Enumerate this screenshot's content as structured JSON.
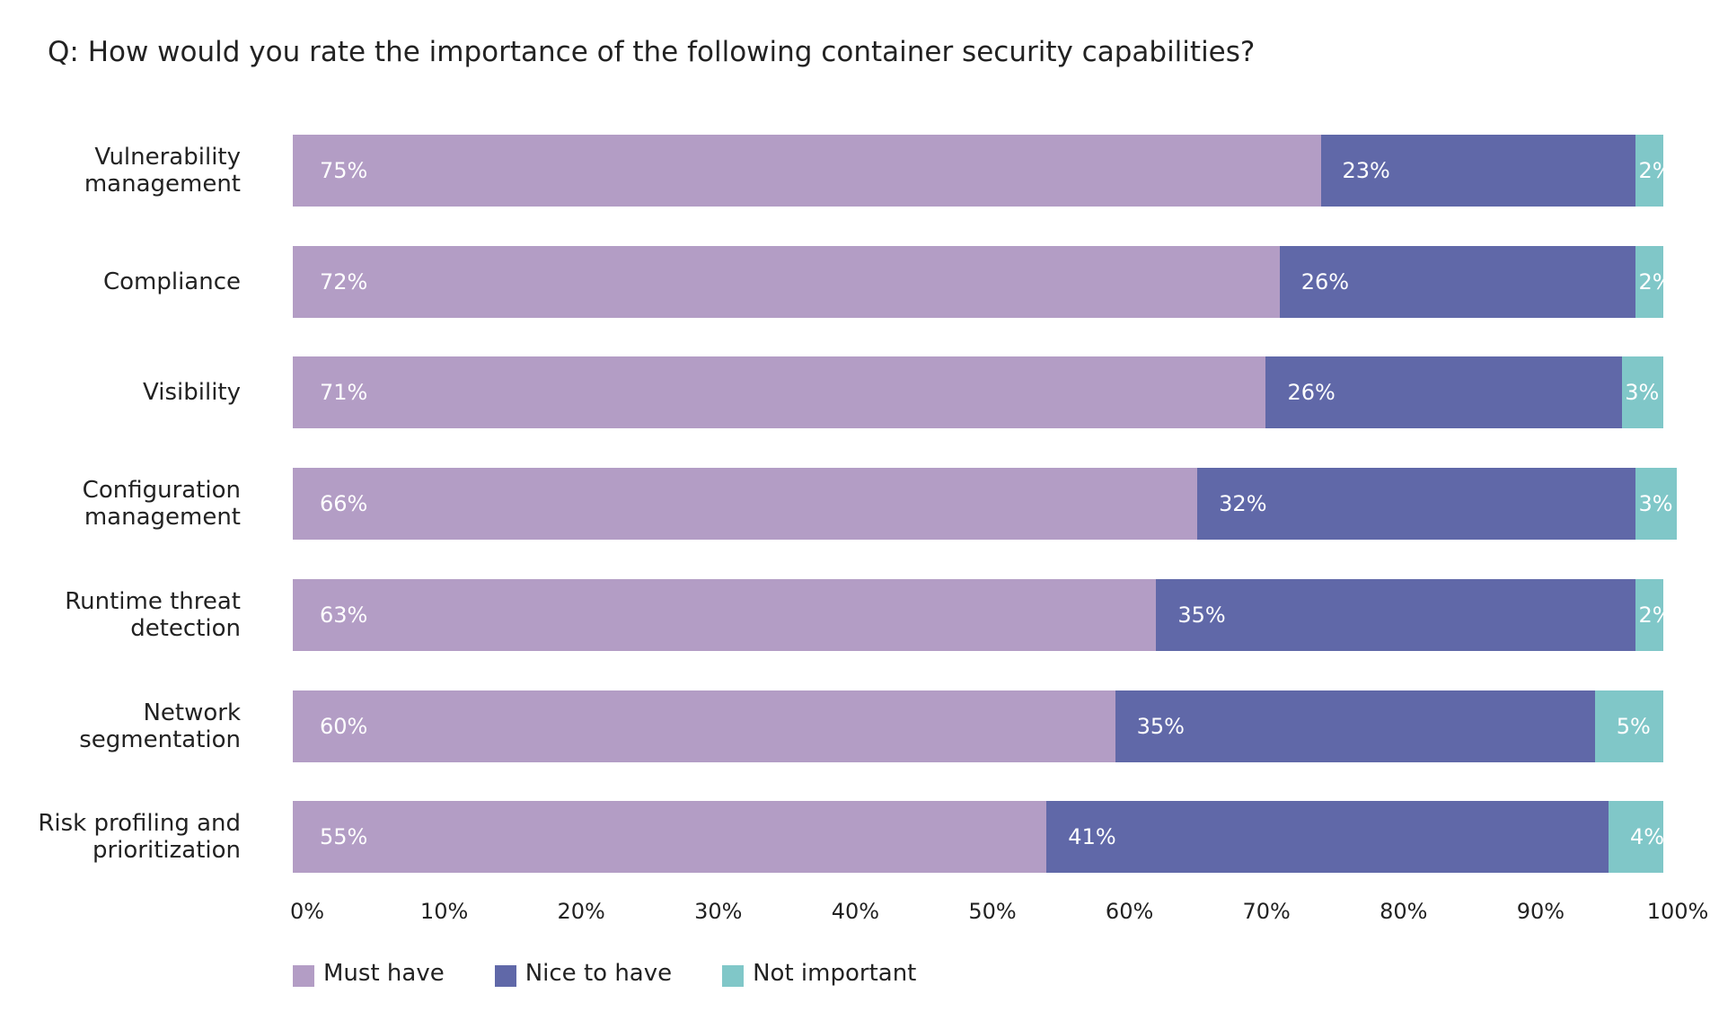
{
  "chart_data": {
    "type": "stacked-bar-horizontal",
    "title": "Q: How would you rate the importance of the following container security capabilities?",
    "categories": [
      "Vulnerability management",
      "Compliance",
      "Visibility",
      "Configuration management",
      "Runtime threat detection",
      "Network segmentation",
      "Risk profiling and prioritization"
    ],
    "series": [
      {
        "name": "Must have",
        "color": "#b39dc5",
        "values": [
          75,
          72,
          71,
          66,
          63,
          60,
          55
        ],
        "value_labels": [
          "75%",
          "72%",
          "71%",
          "66%",
          "63%",
          "60%",
          "55%"
        ]
      },
      {
        "name": "Nice to have",
        "color": "#6068a8",
        "values": [
          23,
          26,
          26,
          32,
          35,
          35,
          41
        ],
        "value_labels": [
          "23%",
          "26%",
          "26%",
          "32%",
          "35%",
          "35%",
          "41%"
        ]
      },
      {
        "name": "Not important",
        "color": "#80c7c8",
        "values": [
          2,
          2,
          3,
          3,
          2,
          5,
          4
        ],
        "value_labels": [
          "2%",
          "2%",
          "3%",
          "3%",
          "2%",
          "5%",
          "4%"
        ]
      }
    ],
    "xlim": [
      0,
      100
    ],
    "xticks": [
      {
        "value": 0,
        "label": "0%"
      },
      {
        "value": 10,
        "label": "10%"
      },
      {
        "value": 20,
        "label": "20%"
      },
      {
        "value": 30,
        "label": "30%"
      },
      {
        "value": 40,
        "label": "40%"
      },
      {
        "value": 50,
        "label": "50%"
      },
      {
        "value": 60,
        "label": "60%"
      },
      {
        "value": 70,
        "label": "70%"
      },
      {
        "value": 80,
        "label": "80%"
      },
      {
        "value": 90,
        "label": "90%"
      },
      {
        "value": 100,
        "label": "100%"
      }
    ],
    "legend": "bottom-left"
  }
}
